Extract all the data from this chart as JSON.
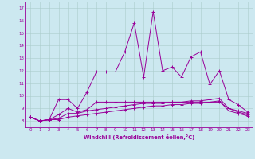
{
  "xlabel": "Windchill (Refroidissement éolien,°C)",
  "x_ticks": [
    0,
    1,
    2,
    3,
    4,
    5,
    6,
    7,
    8,
    9,
    10,
    11,
    12,
    13,
    14,
    15,
    16,
    17,
    18,
    19,
    20,
    21,
    22,
    23
  ],
  "ylim": [
    7.5,
    17.5
  ],
  "xlim": [
    -0.5,
    23.5
  ],
  "yticks": [
    8,
    9,
    10,
    11,
    12,
    13,
    14,
    15,
    16,
    17
  ],
  "bg_color": "#cce8f0",
  "line_color": "#990099",
  "grid_color": "#aacccc",
  "series": [
    [
      8.3,
      8.0,
      8.1,
      9.7,
      9.7,
      9.0,
      10.3,
      11.9,
      11.9,
      11.9,
      13.5,
      15.8,
      11.5,
      16.7,
      12.0,
      12.3,
      11.5,
      13.1,
      13.5,
      10.9,
      12.0,
      9.7,
      9.3,
      8.7
    ],
    [
      8.3,
      8.0,
      8.1,
      8.5,
      9.0,
      8.7,
      8.9,
      9.5,
      9.5,
      9.5,
      9.5,
      9.5,
      9.5,
      9.5,
      9.5,
      9.5,
      9.5,
      9.5,
      9.5,
      9.5,
      9.5,
      9.0,
      8.8,
      8.6
    ],
    [
      8.3,
      8.0,
      8.1,
      8.2,
      8.6,
      8.6,
      8.8,
      8.9,
      9.0,
      9.1,
      9.2,
      9.3,
      9.4,
      9.4,
      9.4,
      9.5,
      9.5,
      9.6,
      9.6,
      9.7,
      9.8,
      9.0,
      8.7,
      8.5
    ],
    [
      8.3,
      8.0,
      8.1,
      8.1,
      8.3,
      8.4,
      8.5,
      8.6,
      8.7,
      8.8,
      8.9,
      9.0,
      9.1,
      9.2,
      9.2,
      9.3,
      9.3,
      9.4,
      9.4,
      9.5,
      9.6,
      8.8,
      8.6,
      8.4
    ]
  ]
}
